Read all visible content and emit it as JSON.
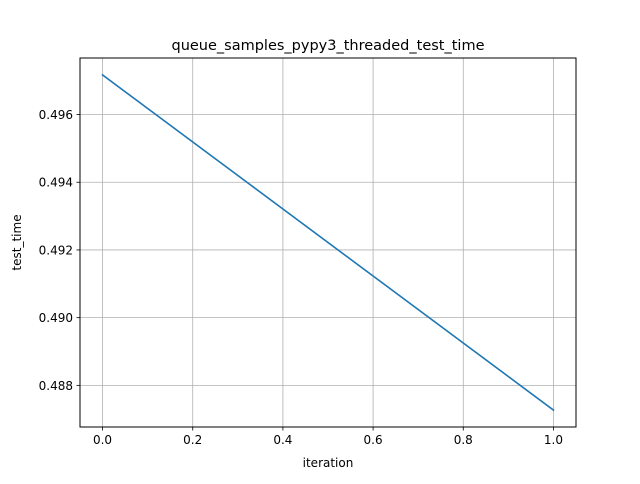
{
  "chart_data": {
    "type": "line",
    "title": "queue_samples_pypy3_threaded_test_time",
    "xlabel": "iteration",
    "ylabel": "test_time",
    "x": [
      0,
      1
    ],
    "series": [
      {
        "values": [
          0.49717,
          0.48727
        ],
        "color": "#1f77b4"
      }
    ],
    "xlim": [
      -0.05,
      1.05
    ],
    "ylim": [
      0.48677,
      0.49767
    ],
    "xticks": [
      0.0,
      0.2,
      0.4,
      0.6,
      0.8,
      1.0
    ],
    "xtick_labels": [
      "0.0",
      "0.2",
      "0.4",
      "0.6",
      "0.8",
      "1.0"
    ],
    "yticks": [
      0.488,
      0.49,
      0.492,
      0.494,
      0.496
    ],
    "ytick_labels": [
      "0.488",
      "0.490",
      "0.492",
      "0.494",
      "0.496"
    ],
    "grid": true,
    "legend": "none"
  }
}
